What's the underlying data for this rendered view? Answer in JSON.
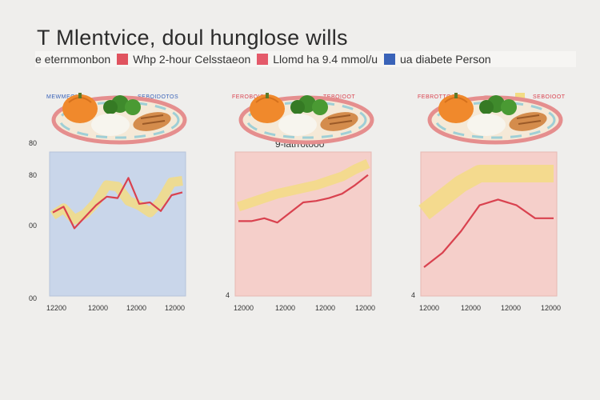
{
  "header": {
    "title": "T Mlentvice, doul hunglose wills"
  },
  "legend": [
    {
      "label": "e eternmonbon",
      "color": "#e0535f"
    },
    {
      "label": "Whp 2-hour Celsstaeon",
      "color": "#e45a6a"
    },
    {
      "label": "Llomd ha 9.4 mmol/u",
      "color": "#3a63b8"
    },
    {
      "label": "ua diabete Person",
      "color": ""
    }
  ],
  "colors": {
    "line": "#d9424f",
    "band": "#f3dc84",
    "clock_blue": "#3a63b8",
    "clock_red": "#d9424f",
    "panel_blue_bg": "#c9d6ea",
    "panel_red_bg": "#f5cfca"
  },
  "panels": [
    {
      "clock_left_label": "MEWMEONO",
      "clock_right_label": "SEBOIDOTOS",
      "clock_color": "blue",
      "subtitle": "",
      "y_ticks": [
        "80",
        "80",
        "00",
        "00"
      ],
      "x_ticks": [
        "12200",
        "12000",
        "12000",
        "12000"
      ]
    },
    {
      "clock_left_label": "FEROBOIOD",
      "clock_right_label": "TEBOIOOT",
      "clock_color": "red",
      "subtitle": "9-latrrotooo",
      "y_ticks": [
        "4"
      ],
      "x_ticks": [
        "12000",
        "12000",
        "12000",
        "12000"
      ]
    },
    {
      "clock_left_label": "FEBROTTGGE",
      "clock_right_label": "SEBOIOOT",
      "clock_color": "red",
      "subtitle": "",
      "y_ticks": [
        "4"
      ],
      "x_ticks": [
        "12000",
        "12000",
        "12000",
        "12000"
      ]
    }
  ],
  "chart_data": [
    {
      "type": "line",
      "background": "blue",
      "ylim": [
        0,
        100
      ],
      "x": [
        0,
        1,
        2,
        3,
        4,
        5,
        6,
        7,
        8,
        9,
        10,
        11,
        12
      ],
      "series": [
        {
          "values": [
            58,
            62,
            47,
            55,
            63,
            69,
            68,
            82,
            64,
            65,
            59,
            70,
            72
          ]
        },
        {
          "values": [
            56,
            61,
            53,
            57,
            65,
            77,
            76,
            66,
            63,
            58,
            66,
            79,
            80
          ]
        }
      ]
    },
    {
      "type": "line",
      "background": "red",
      "ylim": [
        0,
        100
      ],
      "x": [
        0,
        1,
        2,
        3,
        4,
        5,
        6,
        7,
        8,
        9,
        10
      ],
      "series": [
        {
          "values": [
            52,
            52,
            54,
            51,
            58,
            65,
            66,
            68,
            71,
            77,
            84
          ]
        },
        {
          "values": [
            62,
            65,
            68,
            71,
            73,
            75,
            77,
            80,
            83,
            88,
            92
          ]
        }
      ]
    },
    {
      "type": "line",
      "background": "red",
      "ylim": [
        0,
        100
      ],
      "x": [
        0,
        1,
        2,
        3,
        4,
        5,
        6,
        7
      ],
      "series": [
        {
          "values": [
            20,
            30,
            45,
            63,
            67,
            63,
            54,
            54
          ]
        },
        {
          "values": [
            58,
            68,
            78,
            85,
            85,
            85,
            85,
            85
          ]
        }
      ]
    }
  ]
}
